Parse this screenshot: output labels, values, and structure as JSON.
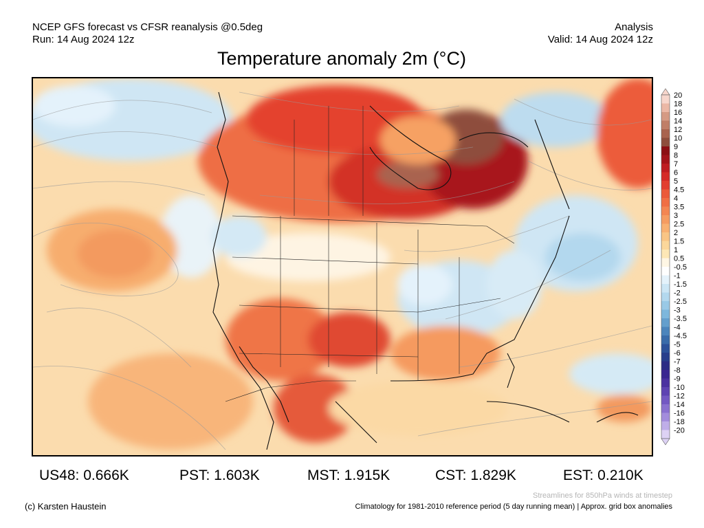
{
  "header": {
    "line1": "NCEP GFS forecast vs CFSR reanalysis @0.5deg",
    "line2": "Run: 14 Aug 2024 12z",
    "right1": "Analysis",
    "right2": "Valid: 14 Aug 2024 12z"
  },
  "title": "Temperature anomaly 2m (°C)",
  "legend": {
    "labels": [
      "20",
      "18",
      "16",
      "14",
      "12",
      "10",
      "9",
      "8",
      "7",
      "6",
      "5",
      "4.5",
      "4",
      "3.5",
      "3",
      "2.5",
      "2",
      "1.5",
      "1",
      "0.5",
      "-0.5",
      "-1",
      "-1.5",
      "-2",
      "-2.5",
      "-3",
      "-3.5",
      "-4",
      "-4.5",
      "-5",
      "-6",
      "-7",
      "-8",
      "-9",
      "-10",
      "-12",
      "-14",
      "-16",
      "-18",
      "-20"
    ],
    "colors": [
      "#f7d6cc",
      "#ebb8a6",
      "#d59a84",
      "#c07e67",
      "#a9644f",
      "#8e4e3c",
      "#8c0f13",
      "#a4141a",
      "#bf1d22",
      "#d52b28",
      "#e23e30",
      "#eb5a3a",
      "#f06f44",
      "#f38652",
      "#f59c61",
      "#f8b172",
      "#f9c585",
      "#fbd79b",
      "#fde7b6",
      "#fef6e4",
      "#fefefe",
      "#e4f2fb",
      "#cce6f5",
      "#b3d8ee",
      "#99c9e6",
      "#7db7dc",
      "#649fcd",
      "#4c85bc",
      "#3a6caa",
      "#2d529a",
      "#283e8c",
      "#2c2c85",
      "#3a2690",
      "#4b31a0",
      "#5e43b2",
      "#7358c3",
      "#8a71d0",
      "#a38ddc",
      "#bfaee8",
      "#ddd2f4"
    ]
  },
  "regional_stats": {
    "us48": "US48: 0.666K",
    "pst": "PST: 1.603K",
    "mst": "MST: 1.915K",
    "cst": "CST: 1.829K",
    "est": "EST: 0.210K"
  },
  "footer": {
    "copyright": "(c) Karsten Haustein",
    "streamlines": "Streamlines for 850hPa winds at timestep",
    "climatology": "Climatology for 1981-2010 reference period (5 day running mean) | Approx. grid box anomalies"
  }
}
